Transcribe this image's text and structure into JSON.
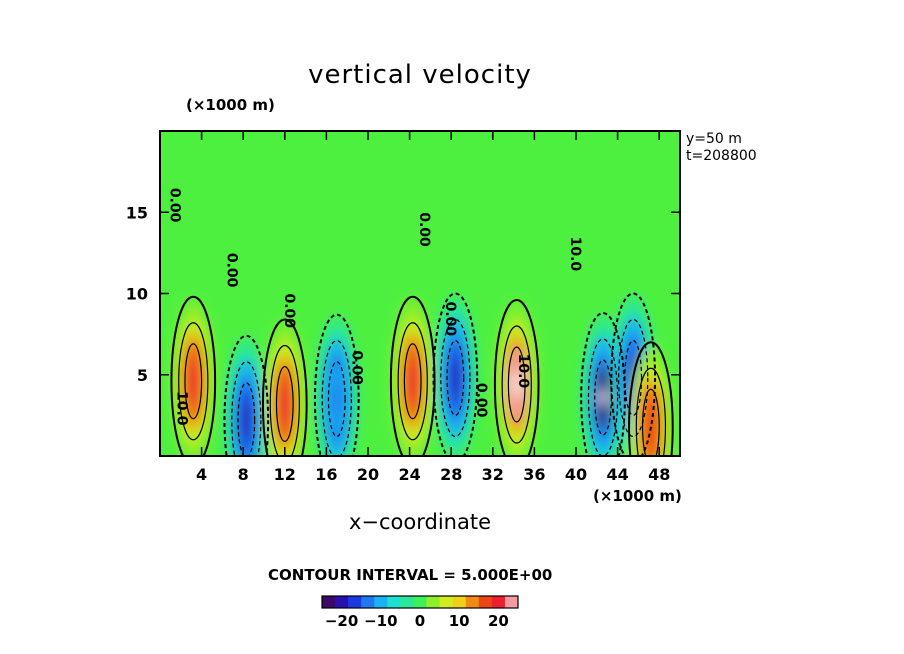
{
  "chart_data": {
    "type": "heatmap",
    "title": "vertical velocity",
    "xlabel": "x−coordinate",
    "x_unit": "(×1000 m)",
    "y_unit": "(×1000 m)",
    "xlim": [
      0,
      50
    ],
    "ylim": [
      0,
      20
    ],
    "x_ticks": [
      4,
      8,
      12,
      16,
      20,
      24,
      28,
      32,
      36,
      40,
      44,
      48
    ],
    "y_ticks": [
      5,
      10,
      15
    ],
    "annotations": {
      "y_location": "y=50  m",
      "time": "t=208800"
    },
    "contour_interval_text": "CONTOUR INTERVAL = 5.000E+00",
    "contour_labels": [
      "0.00",
      "0.00",
      "0.00",
      "0.00",
      "0.00",
      "0.00",
      "0.00",
      "10.0",
      "10.0",
      "10.0"
    ],
    "colorbar": {
      "range": [
        -25,
        25
      ],
      "tick_values": [
        -20,
        -10,
        0,
        10,
        20
      ],
      "tick_labels": [
        "−20",
        "−10",
        "0",
        "10",
        "20"
      ]
    },
    "features": [
      {
        "kind": "updraft",
        "x": 3.2,
        "z": 4.6,
        "peak": 20
      },
      {
        "kind": "downdraft",
        "x": 8.3,
        "z": 2.2,
        "peak": -19
      },
      {
        "kind": "updraft",
        "x": 12.0,
        "z": 3.2,
        "peak": 19
      },
      {
        "kind": "downdraft",
        "x": 17.0,
        "z": 3.5,
        "peak": -12
      },
      {
        "kind": "updraft",
        "x": 24.3,
        "z": 4.6,
        "peak": 20
      },
      {
        "kind": "downdraft",
        "x": 28.4,
        "z": 4.8,
        "peak": -21
      },
      {
        "kind": "updraft",
        "x": 34.3,
        "z": 4.4,
        "peak": 28
      },
      {
        "kind": "downdraft",
        "x": 42.6,
        "z": 3.6,
        "peak": -26
      },
      {
        "kind": "downdraft",
        "x": 45.5,
        "z": 4.8,
        "peak": -21
      },
      {
        "kind": "updraft",
        "x": 47.2,
        "z": 1.8,
        "peak": 18
      }
    ]
  }
}
